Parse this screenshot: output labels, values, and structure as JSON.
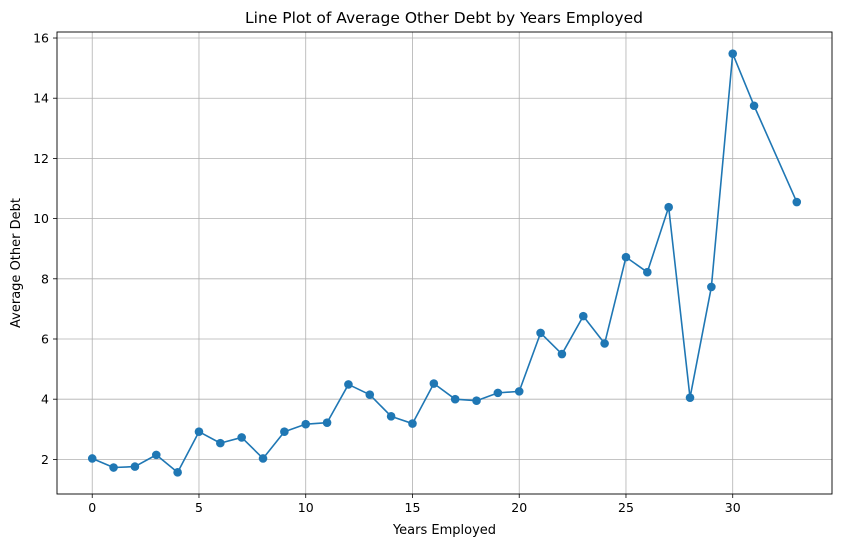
{
  "chart_data": {
    "type": "line",
    "title": "Line Plot of Average Other Debt by Years Employed",
    "xlabel": "Years Employed",
    "ylabel": "Average Other Debt",
    "xlim": [
      -1.65,
      34.65
    ],
    "ylim": [
      0.85,
      16.2
    ],
    "xticks": [
      0,
      5,
      10,
      15,
      20,
      25,
      30
    ],
    "yticks": [
      2,
      4,
      6,
      8,
      10,
      12,
      14,
      16
    ],
    "grid": true,
    "marker": "circle",
    "color": "#1f77b4",
    "series": [
      {
        "x": [
          0,
          1,
          2,
          3,
          4,
          5,
          6,
          7,
          8,
          9,
          10,
          11,
          12,
          13,
          14,
          15,
          16,
          17,
          18,
          19,
          20,
          21,
          22,
          23,
          24,
          25,
          26,
          27,
          28,
          29,
          30,
          31,
          33
        ],
        "values": [
          2.03,
          1.73,
          1.76,
          2.15,
          1.57,
          2.92,
          2.54,
          2.73,
          2.03,
          2.92,
          3.17,
          3.22,
          4.49,
          4.15,
          3.43,
          3.19,
          4.52,
          4.0,
          3.95,
          4.21,
          4.26,
          6.2,
          5.5,
          6.76,
          5.85,
          8.72,
          8.22,
          10.38,
          4.05,
          7.73,
          15.48,
          13.75,
          10.55
        ]
      }
    ]
  }
}
